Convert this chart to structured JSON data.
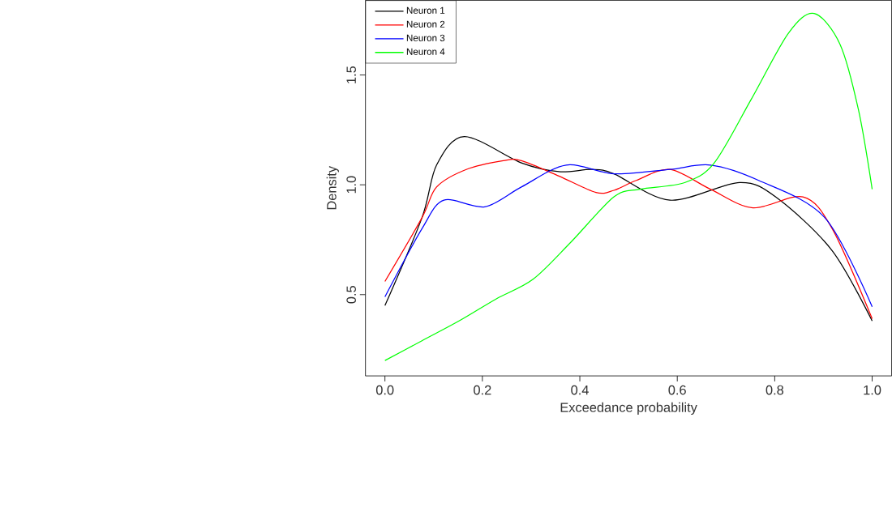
{
  "chart_data": {
    "type": "line",
    "xlabel": "Exceedance probability",
    "ylabel": "Density",
    "xlim": [
      -0.04,
      1.04
    ],
    "ylim": [
      0.13,
      1.84
    ],
    "xticks": [
      {
        "value": 0,
        "label": "0.0"
      },
      0.2,
      0.4,
      0.6,
      0.8,
      {
        "value": 1,
        "label": "1.0"
      }
    ],
    "yticks": [
      0.5,
      {
        "value": 1,
        "label": "1.0"
      },
      1.5
    ],
    "legend": "top left",
    "grid": false,
    "marker": "none",
    "line_style": "solid",
    "series": [
      {
        "name": "Neuron 1",
        "color": "#000000",
        "x": [
          0,
          0.076,
          0.106,
          0.163,
          0.28,
          0.357,
          0.425,
          0.47,
          0.585,
          0.728,
          0.805,
          0.918,
          1.0
        ],
        "values": [
          0.45,
          0.85,
          1.09,
          1.22,
          1.1,
          1.06,
          1.07,
          1.05,
          0.93,
          1.01,
          0.94,
          0.7,
          0.38
        ]
      },
      {
        "name": "Neuron 2",
        "color": "#ff0000",
        "x": [
          0,
          0.076,
          0.106,
          0.167,
          0.243,
          0.28,
          0.357,
          0.433,
          0.47,
          0.516,
          0.585,
          0.668,
          0.755,
          0.858,
          0.918,
          1.0
        ],
        "values": [
          0.56,
          0.85,
          0.99,
          1.07,
          1.11,
          1.11,
          1.04,
          0.965,
          0.975,
          1.02,
          1.07,
          0.98,
          0.895,
          0.945,
          0.8,
          0.39
        ]
      },
      {
        "name": "Neuron 3",
        "color": "#0000ff",
        "x": [
          0,
          0.076,
          0.121,
          0.205,
          0.28,
          0.372,
          0.47,
          0.585,
          0.668,
          0.767,
          0.903,
          1.0
        ],
        "values": [
          0.49,
          0.8,
          0.93,
          0.9,
          0.99,
          1.09,
          1.05,
          1.07,
          1.09,
          1.02,
          0.85,
          0.445
        ]
      },
      {
        "name": "Neuron 4",
        "color": "#00ff00",
        "x": [
          0,
          0.076,
          0.152,
          0.228,
          0.304,
          0.38,
          0.47,
          0.524,
          0.615,
          0.676,
          0.752,
          0.828,
          0.881,
          0.934,
          0.972,
          1.0
        ],
        "values": [
          0.2,
          0.29,
          0.38,
          0.48,
          0.57,
          0.735,
          0.945,
          0.98,
          1.01,
          1.1,
          1.39,
          1.69,
          1.78,
          1.64,
          1.34,
          0.98
        ]
      }
    ]
  }
}
